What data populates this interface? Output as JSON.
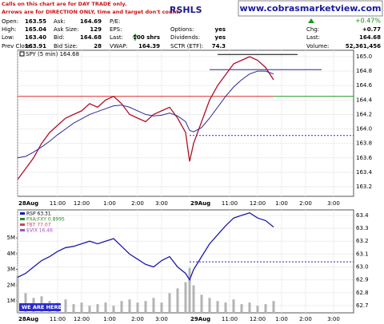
{
  "notes": [
    "Calls on this chart are for DAY TRADE only.",
    "Arrows are for DIRECTION ONLY, time and target don't count."
  ],
  "symbol": "RSHLS",
  "website": "www.cobrasmarketview.com",
  "change_pct": "+0.47%",
  "quote": [
    [
      {
        "label": "Open:",
        "value": "163.55"
      },
      {
        "label": "High:",
        "value": "165.04"
      },
      {
        "label": "Low:",
        "value": "163.40"
      },
      {
        "label": "Prev Close:",
        "value": "163.91"
      }
    ],
    [
      {
        "label": "Ask:",
        "value": "164.69"
      },
      {
        "label": "Ask Size:",
        "value": "129"
      },
      {
        "label": "Bid:",
        "value": "164.68"
      },
      {
        "label": "Bid Size:",
        "value": "28"
      }
    ],
    [
      {
        "label": "P/E:"
      },
      {
        "label": "EPS:"
      },
      {
        "label": "Last:",
        "value": "100 shrs"
      },
      {
        "label": "VWAP:",
        "value": "164.39"
      }
    ],
    [
      {
        "label": "Options:",
        "value": "yes"
      },
      {
        "label": "Dividends:",
        "value": "yes"
      },
      {
        "label": "SCTR (ETF):",
        "value": "74.3"
      }
    ],
    [
      {
        "label": "Chg:",
        "value": "+0.77"
      },
      {
        "label": "Last:",
        "value": "164.68"
      },
      {
        "label": "Volume:",
        "value": "52,361,456"
      }
    ]
  ],
  "chart_data": [
    {
      "type": "line",
      "legend": "SPY (5 min) 164.68",
      "x": [
        0,
        2,
        4,
        6,
        8,
        10,
        12,
        14,
        16,
        18,
        20,
        22,
        24,
        26,
        28,
        30,
        32,
        34,
        36,
        38,
        40,
        42,
        43,
        44,
        46,
        48,
        50,
        52,
        54,
        56,
        58,
        60,
        62,
        64
      ],
      "series": [
        {
          "color": "#b0102a",
          "values": [
            163.3,
            163.45,
            163.6,
            163.8,
            163.95,
            164.05,
            164.15,
            164.2,
            164.25,
            164.35,
            164.3,
            164.4,
            164.45,
            164.35,
            164.2,
            164.15,
            164.1,
            164.2,
            164.25,
            164.3,
            164.15,
            163.95,
            163.55,
            163.8,
            164.1,
            164.4,
            164.6,
            164.75,
            164.9,
            164.95,
            165.0,
            164.95,
            164.85,
            164.68
          ]
        },
        {
          "color": "#2a2a9a",
          "values": [
            163.6,
            163.62,
            163.68,
            163.75,
            163.83,
            163.92,
            164.0,
            164.08,
            164.14,
            164.2,
            164.24,
            164.28,
            164.32,
            164.33,
            164.3,
            164.25,
            164.2,
            164.18,
            164.19,
            164.22,
            164.18,
            164.1,
            163.98,
            163.96,
            164.02,
            164.15,
            164.3,
            164.45,
            164.58,
            164.68,
            164.76,
            164.8,
            164.8,
            164.76
          ]
        }
      ],
      "hlines": [
        {
          "value": 164.45,
          "color": "#e02a2a",
          "xrange": [
            0,
            64
          ]
        },
        {
          "value": 164.45,
          "color": "#1a9a1a",
          "xrange": [
            64,
            84
          ]
        },
        {
          "value": 164.82,
          "color": "#2a2a9a",
          "xrange": [
            48,
            76
          ]
        },
        {
          "value": 165.03,
          "color": "#000000",
          "xrange": [
            50,
            70
          ]
        },
        {
          "value": 163.91,
          "color": "#2a2aca",
          "xrange": [
            43,
            84
          ],
          "dotted": true
        }
      ],
      "xlim": [
        0,
        84
      ],
      "xticks": [
        {
          "value": 0,
          "label": "28Aug"
        },
        {
          "value": 10,
          "label": "11:00"
        },
        {
          "value": 16,
          "label": "12:00"
        },
        {
          "value": 23,
          "label": "1:00"
        },
        {
          "value": 30,
          "label": "2:00"
        },
        {
          "value": 36,
          "label": "3:00"
        },
        {
          "value": 43,
          "label": "29Aug"
        },
        {
          "value": 53,
          "label": "11:00"
        },
        {
          "value": 60,
          "label": "12:00"
        },
        {
          "value": 66,
          "label": "1:00"
        },
        {
          "value": 72,
          "label": "2:00"
        },
        {
          "value": 79,
          "label": "3:00"
        }
      ],
      "ylim": [
        163.068,
        165.088
      ],
      "yticks": [
        163.2,
        163.4,
        163.6,
        163.8,
        {
          "value": 164,
          "label": "164.0"
        },
        164.2,
        164.4,
        164.6,
        164.8,
        {
          "value": 165,
          "label": "165.0"
        }
      ],
      "grid": true
    },
    {
      "type": "line",
      "x": [
        0,
        2,
        4,
        6,
        8,
        10,
        12,
        14,
        16,
        18,
        20,
        22,
        24,
        26,
        28,
        30,
        32,
        34,
        36,
        38,
        40,
        42,
        43,
        44,
        46,
        48,
        50,
        52,
        54,
        56,
        58,
        60,
        62,
        64
      ],
      "series": [
        {
          "name": "RSP 63.31",
          "color": "#1a1ab0",
          "values": [
            62.92,
            62.95,
            63.0,
            63.05,
            63.08,
            63.12,
            63.15,
            63.16,
            63.18,
            63.2,
            63.18,
            63.2,
            63.22,
            63.16,
            63.1,
            63.06,
            63.02,
            63.0,
            63.05,
            63.08,
            63.0,
            62.95,
            62.9,
            62.98,
            63.08,
            63.18,
            63.25,
            63.32,
            63.38,
            63.4,
            63.42,
            63.38,
            63.36,
            63.31
          ]
        },
        {
          "name": "Volume",
          "type": "bar",
          "axis": "y2",
          "color": "#b4b4b4",
          "values": [
            2600000,
            1500000,
            1200000,
            1300000,
            1000000,
            900000,
            1100000,
            800000,
            900000,
            700000,
            800000,
            900000,
            700000,
            1000000,
            1100000,
            900000,
            1000000,
            1200000,
            900000,
            1500000,
            1800000,
            2200000,
            3100000,
            2000000,
            1400000,
            1200000,
            1000000,
            900000,
            1100000,
            800000,
            900000,
            700000,
            800000,
            1000000
          ]
        }
      ],
      "legend_only": [
        {
          "name": "PXA:FXY 0.8995",
          "color": "#2a8a2a"
        },
        {
          "name": "TBT 77.07",
          "color": "#d04060"
        },
        {
          "name": "$VIX 16.46",
          "color": "#a050c0"
        }
      ],
      "hlines": [
        {
          "value": 63.04,
          "color": "#2a2aca",
          "xrange": [
            43,
            84
          ],
          "dotted": true
        }
      ],
      "annotation": "WE ARE HERE!",
      "xlim": [
        0,
        84
      ],
      "xticks": [
        {
          "value": 0,
          "label": "28Aug"
        },
        {
          "value": 10,
          "label": "11:00"
        },
        {
          "value": 16,
          "label": "12:00"
        },
        {
          "value": 23,
          "label": "1:00"
        },
        {
          "value": 30,
          "label": "2:00"
        },
        {
          "value": 36,
          "label": "3:00"
        },
        {
          "value": 43,
          "label": "29Aug"
        },
        {
          "value": 53,
          "label": "11:00"
        },
        {
          "value": 60,
          "label": "12:00"
        },
        {
          "value": 66,
          "label": "1:00"
        },
        {
          "value": 72,
          "label": "2:00"
        },
        {
          "value": 79,
          "label": "3:00"
        }
      ],
      "ylim": [
        62.644,
        63.443
      ],
      "yticks": [
        62.7,
        62.8,
        62.9,
        {
          "value": 63,
          "label": "63.0"
        },
        63.1,
        63.2,
        63.3,
        63.4
      ],
      "y2lim": [
        250000,
        6780000
      ],
      "y2ticks": [
        {
          "value": 1000000,
          "label": "1M"
        },
        {
          "value": 2000000,
          "label": "2M"
        },
        {
          "value": 3000000,
          "label": "3M"
        },
        {
          "value": 4000000,
          "label": "4M"
        },
        {
          "value": 5000000,
          "label": "5M"
        }
      ],
      "grid": true
    }
  ]
}
